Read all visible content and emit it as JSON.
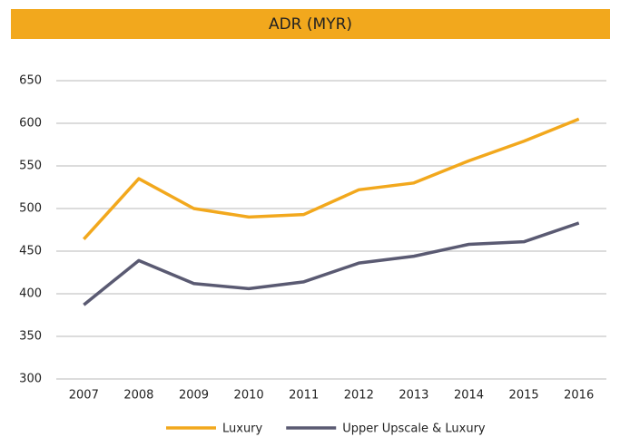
{
  "chart_data": {
    "type": "line",
    "title": "ADR (MYR)",
    "categories": [
      "2007",
      "2008",
      "2009",
      "2010",
      "2011",
      "2012",
      "2013",
      "2014",
      "2015",
      "2016"
    ],
    "series": [
      {
        "name": "Luxury",
        "color": "#f2a81d",
        "values": [
          464,
          535,
          500,
          490,
          493,
          522,
          530,
          556,
          579,
          605
        ]
      },
      {
        "name": "Upper Upscale & Luxury",
        "color": "#5a5a72",
        "values": [
          387,
          439,
          412,
          406,
          414,
          436,
          444,
          458,
          461,
          483
        ]
      }
    ],
    "ylim": [
      300,
      650
    ],
    "yticks": [
      300,
      350,
      400,
      450,
      500,
      550,
      600,
      650
    ],
    "grid": true,
    "legend": "bottom",
    "title_background": "#f2a81d"
  }
}
